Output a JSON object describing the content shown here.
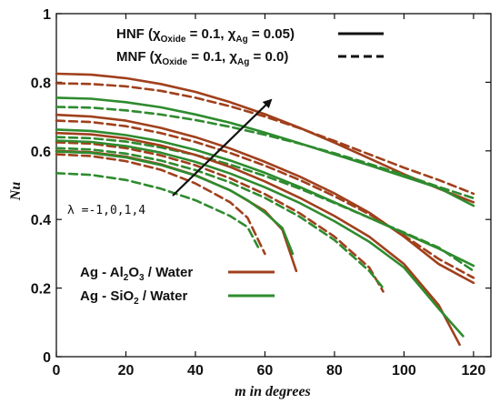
{
  "chart_data": {
    "type": "line",
    "xlabel_prefix": "m",
    "xlabel_suffix": " in degrees",
    "ylabel": "Nu",
    "xlim": [
      0,
      125
    ],
    "ylim": [
      0,
      1
    ],
    "xticks": [
      "0",
      "20",
      "40",
      "60",
      "80",
      "100",
      "120"
    ],
    "yticks": [
      "0",
      "0.2",
      "0.4",
      "0.6",
      "0.8",
      "1"
    ],
    "grid": false,
    "colors": {
      "al2o3": "#a0401c",
      "sio2": "#2e8b2e",
      "annotation": "#111111"
    },
    "style_legend": {
      "placement": "top",
      "hnf": {
        "name": "HNF",
        "params": "(χ_Oxide = 0.1, χ_Ag = 0.05)",
        "line": "solid"
      },
      "mnf": {
        "name": "MNF",
        "params": "(χ_Oxide = 0.1, χ_Ag = 0.0)",
        "line": "dashed"
      }
    },
    "fluid_legend": {
      "placement": "bottom-left",
      "al2o3": "Ag - Al2O3 / Water",
      "sio2": "Ag - SiO2 / Water"
    },
    "annotation": {
      "text": "λ =-1,0,1,4",
      "arrow": "increasing λ"
    },
    "series": [
      {
        "fluid": "al2o3",
        "style": "solid",
        "x": [
          0,
          10,
          20,
          30,
          40,
          50,
          60,
          70,
          80,
          90,
          100,
          110,
          120
        ],
        "y": [
          0.825,
          0.822,
          0.812,
          0.795,
          0.772,
          0.742,
          0.707,
          0.667,
          0.624,
          0.578,
          0.532,
          0.49,
          0.45
        ]
      },
      {
        "fluid": "al2o3",
        "style": "dashed",
        "x": [
          0,
          10,
          20,
          30,
          40,
          50,
          60,
          70,
          80,
          90,
          100,
          110,
          120
        ],
        "y": [
          0.797,
          0.795,
          0.788,
          0.775,
          0.755,
          0.73,
          0.7,
          0.666,
          0.629,
          0.59,
          0.551,
          0.515,
          0.475
        ]
      },
      {
        "fluid": "sio2",
        "style": "solid",
        "x": [
          0,
          10,
          20,
          30,
          40,
          50,
          60,
          70,
          80,
          90,
          100,
          110,
          120
        ],
        "y": [
          0.755,
          0.752,
          0.742,
          0.727,
          0.706,
          0.682,
          0.653,
          0.622,
          0.59,
          0.558,
          0.525,
          0.492,
          0.44
        ]
      },
      {
        "fluid": "sio2",
        "style": "dashed",
        "x": [
          0,
          10,
          20,
          30,
          40,
          50,
          60,
          70,
          80,
          90,
          100,
          110,
          120
        ],
        "y": [
          0.728,
          0.726,
          0.718,
          0.706,
          0.69,
          0.67,
          0.647,
          0.621,
          0.593,
          0.562,
          0.53,
          0.495,
          0.462
        ]
      },
      {
        "fluid": "al2o3",
        "style": "solid",
        "x": [
          0,
          10,
          20,
          30,
          40,
          50,
          60,
          70,
          80,
          90,
          100,
          110,
          120
        ],
        "y": [
          0.705,
          0.7,
          0.688,
          0.667,
          0.64,
          0.607,
          0.568,
          0.525,
          0.476,
          0.42,
          0.35,
          0.27,
          0.215
        ]
      },
      {
        "fluid": "al2o3",
        "style": "dashed",
        "x": [
          0,
          10,
          20,
          30,
          40,
          50,
          60,
          70,
          80,
          90,
          100,
          110,
          120
        ],
        "y": [
          0.688,
          0.684,
          0.672,
          0.652,
          0.626,
          0.594,
          0.557,
          0.515,
          0.468,
          0.415,
          0.353,
          0.285,
          0.23
        ]
      },
      {
        "fluid": "sio2",
        "style": "solid",
        "x": [
          0,
          10,
          20,
          30,
          40,
          50,
          60,
          70,
          80,
          90,
          100,
          110,
          120
        ],
        "y": [
          0.662,
          0.658,
          0.646,
          0.628,
          0.603,
          0.572,
          0.536,
          0.495,
          0.45,
          0.405,
          0.36,
          0.315,
          0.265
        ]
      },
      {
        "fluid": "sio2",
        "style": "dashed",
        "x": [
          0,
          10,
          20,
          30,
          40,
          50,
          60,
          70,
          80,
          90,
          100,
          110,
          120
        ],
        "y": [
          0.64,
          0.637,
          0.627,
          0.61,
          0.588,
          0.56,
          0.527,
          0.49,
          0.448,
          0.405,
          0.362,
          0.318,
          0.25
        ]
      },
      {
        "fluid": "al2o3",
        "style": "solid",
        "x": [
          0,
          10,
          20,
          30,
          40,
          50,
          60,
          70,
          80,
          90,
          100,
          110,
          116
        ],
        "y": [
          0.652,
          0.648,
          0.636,
          0.616,
          0.588,
          0.553,
          0.511,
          0.463,
          0.41,
          0.35,
          0.27,
          0.15,
          0.035
        ]
      },
      {
        "fluid": "al2o3",
        "style": "dashed",
        "x": [
          0,
          10,
          20,
          30,
          40,
          50,
          60,
          70,
          80,
          90,
          94
        ],
        "y": [
          0.625,
          0.621,
          0.608,
          0.587,
          0.558,
          0.52,
          0.474,
          0.418,
          0.35,
          0.26,
          0.19
        ]
      },
      {
        "fluid": "sio2",
        "style": "solid",
        "x": [
          0,
          10,
          20,
          30,
          40,
          50,
          60,
          70,
          80,
          90,
          100,
          110,
          117
        ],
        "y": [
          0.63,
          0.626,
          0.614,
          0.595,
          0.568,
          0.534,
          0.494,
          0.448,
          0.395,
          0.335,
          0.26,
          0.14,
          0.06
        ]
      },
      {
        "fluid": "sio2",
        "style": "dashed",
        "x": [
          0,
          10,
          20,
          30,
          40,
          50,
          60,
          70,
          80,
          90,
          94
        ],
        "y": [
          0.608,
          0.604,
          0.592,
          0.572,
          0.544,
          0.508,
          0.463,
          0.408,
          0.34,
          0.25,
          0.2
        ]
      },
      {
        "fluid": "al2o3",
        "style": "solid",
        "x": [
          0,
          10,
          20,
          30,
          40,
          50,
          60,
          65,
          69
        ],
        "y": [
          0.6,
          0.596,
          0.583,
          0.561,
          0.529,
          0.485,
          0.425,
          0.37,
          0.25
        ]
      },
      {
        "fluid": "al2o3",
        "style": "dashed",
        "x": [
          0,
          10,
          20,
          30,
          40,
          50,
          55,
          60
        ],
        "y": [
          0.59,
          0.585,
          0.57,
          0.545,
          0.505,
          0.45,
          0.405,
          0.3
        ]
      },
      {
        "fluid": "sio2",
        "style": "solid",
        "x": [
          0,
          10,
          20,
          30,
          40,
          50,
          55,
          60,
          65,
          68
        ],
        "y": [
          0.598,
          0.594,
          0.581,
          0.559,
          0.528,
          0.485,
          0.456,
          0.42,
          0.375,
          0.3
        ]
      },
      {
        "fluid": "sio2",
        "style": "dashed",
        "x": [
          0,
          10,
          20,
          30,
          40,
          50,
          55,
          58
        ],
        "y": [
          0.535,
          0.53,
          0.515,
          0.49,
          0.456,
          0.41,
          0.378,
          0.32
        ]
      }
    ]
  }
}
